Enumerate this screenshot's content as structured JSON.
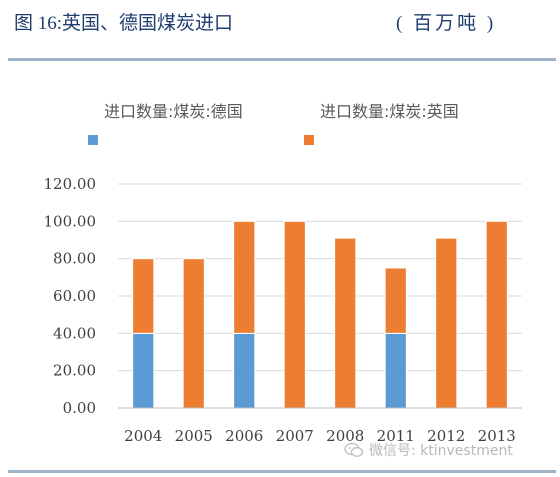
{
  "figure": {
    "title": "图 16:英国、德国煤炭进口",
    "unit": "( 百万吨 )"
  },
  "watermark": {
    "icon": "wechat-icon",
    "text": "微信号: ktinvestment"
  },
  "chart_data": {
    "type": "bar",
    "stacked": true,
    "categories": [
      "2004",
      "2005",
      "2006",
      "2007",
      "2008",
      "2011",
      "2012",
      "2013"
    ],
    "series": [
      {
        "name": "进口数量:煤炭:德国",
        "color": "#5b9bd5",
        "values": [
          40,
          0,
          40,
          0,
          0,
          40,
          0,
          0
        ]
      },
      {
        "name": "进口数量:煤炭:英国",
        "color": "#ed7d31",
        "values": [
          40,
          80,
          60,
          100,
          91,
          35,
          91,
          100
        ]
      }
    ],
    "yticks": [
      "0.00",
      "20.00",
      "40.00",
      "60.00",
      "80.00",
      "100.00",
      "120.00"
    ],
    "ylim": [
      0,
      120
    ],
    "grid": true,
    "legend_position": "top",
    "title": "",
    "xlabel": "",
    "ylabel": ""
  }
}
